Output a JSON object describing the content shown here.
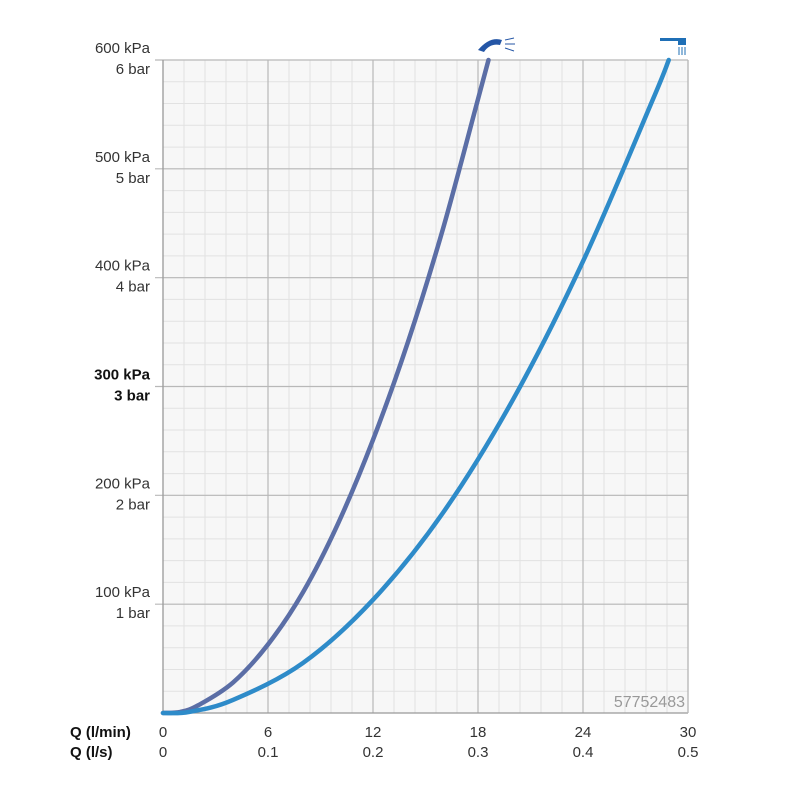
{
  "chart_data": {
    "type": "line",
    "xlim": [
      0,
      30
    ],
    "ylim": [
      0,
      600
    ],
    "xticks": [
      0,
      6,
      12,
      18,
      24,
      30
    ],
    "xlabel": "Q (l/min)",
    "x2ticks": [
      0,
      0.1,
      0.2,
      0.3,
      0.4,
      0.5
    ],
    "x2label": "Q (l/s)",
    "yticks": [
      {
        "value": 100,
        "label": [
          "100 kPa",
          "1 bar"
        ]
      },
      {
        "value": 200,
        "label": [
          "200 kPa",
          "2 bar"
        ]
      },
      {
        "value": 300,
        "label": [
          "300 kPa",
          "3 bar"
        ]
      },
      {
        "value": 400,
        "label": [
          "400 kPa",
          "4 bar"
        ]
      },
      {
        "value": 500,
        "label": [
          "500 kPa",
          "5 bar"
        ]
      },
      {
        "value": 600,
        "label": [
          "600 kPa",
          "6 bar"
        ]
      }
    ],
    "highlight_ytick": 300,
    "grid": true,
    "minor_grid": {
      "x": 1.2,
      "y": 20
    },
    "annotation": "57752483",
    "series": [
      {
        "color": "#5b6ea6",
        "x": [
          0,
          1,
          2,
          4,
          6,
          8,
          10,
          12,
          14,
          16,
          18,
          18.6
        ],
        "values": [
          0,
          1,
          7,
          28,
          63,
          111,
          174,
          251,
          341,
          445,
          564,
          600
        ]
      },
      {
        "color": "#2e8bc9",
        "x": [
          0,
          1.5,
          4,
          8,
          12,
          16,
          20,
          24,
          28,
          28.9
        ],
        "values": [
          0,
          1,
          12,
          46,
          104,
          184,
          288,
          415,
          564,
          600
        ]
      }
    ]
  }
}
